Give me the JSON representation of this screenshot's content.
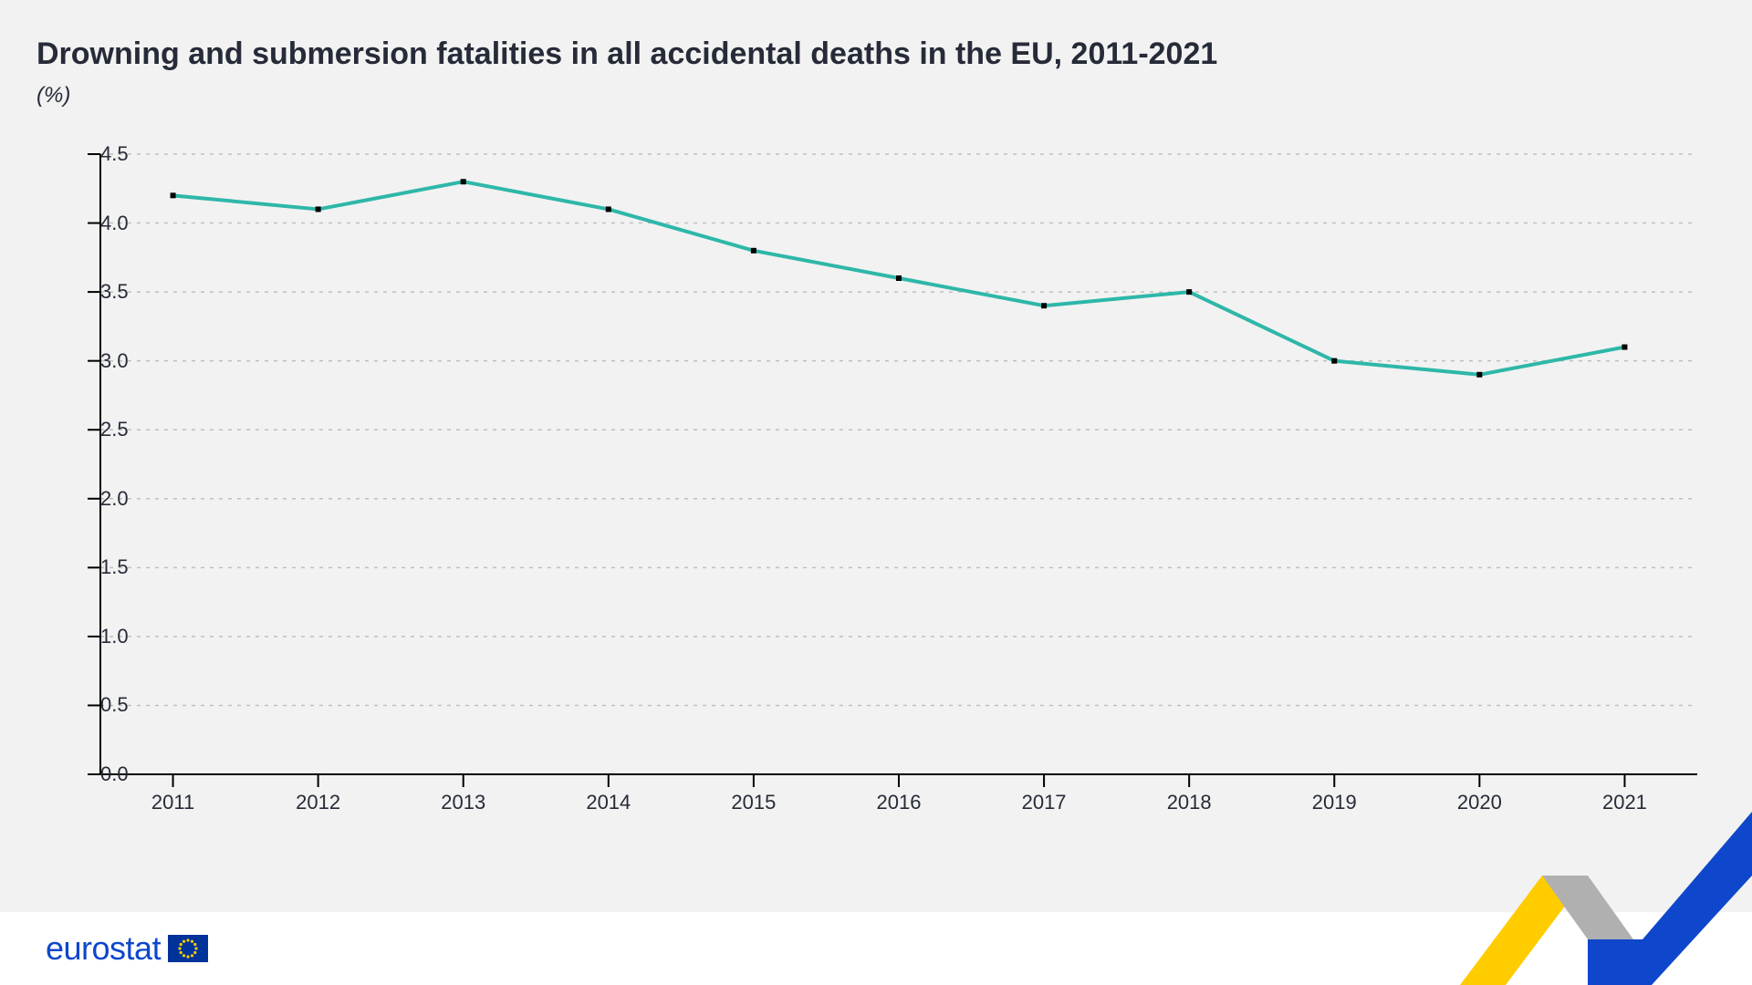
{
  "chart": {
    "type": "line",
    "title": "Drowning and submersion fatalities in all accidental deaths in the EU, 2011-2021",
    "subtitle": "(%)",
    "title_fontsize": 34,
    "title_color": "#262b38",
    "subtitle_fontsize": 24,
    "background_color": "#f2f2f2",
    "plot_background": "#f2f2f2",
    "categories": [
      "2011",
      "2012",
      "2013",
      "2014",
      "2015",
      "2016",
      "2017",
      "2018",
      "2019",
      "2020",
      "2021"
    ],
    "values": [
      4.2,
      4.1,
      4.3,
      4.1,
      3.8,
      3.6,
      3.4,
      3.5,
      3.0,
      2.9,
      3.1
    ],
    "line_color": "#2eb7a9",
    "line_width": 4,
    "marker_color": "#000000",
    "marker_size": 6,
    "marker_shape": "square",
    "ylim": [
      0.0,
      4.5
    ],
    "ytick_step": 0.5,
    "yticks": [
      "0.0",
      "0.5",
      "1.0",
      "1.5",
      "2.0",
      "2.5",
      "3.0",
      "3.5",
      "4.0",
      "4.5"
    ],
    "axis_color": "#000000",
    "axis_width": 2,
    "grid_color": "#bfbfbf",
    "grid_dash": "4 6",
    "tick_length": 14,
    "axis_fontsize": 22,
    "axis_font_color": "#262b38"
  },
  "branding": {
    "name": "eurostat",
    "text_color": "#0e47cb",
    "flag_bg": "#003399",
    "flag_star_color": "#ffcc00",
    "swoosh_yellow": "#ffcc00",
    "swoosh_grey": "#b0b0b0",
    "swoosh_blue": "#0e47cb"
  }
}
